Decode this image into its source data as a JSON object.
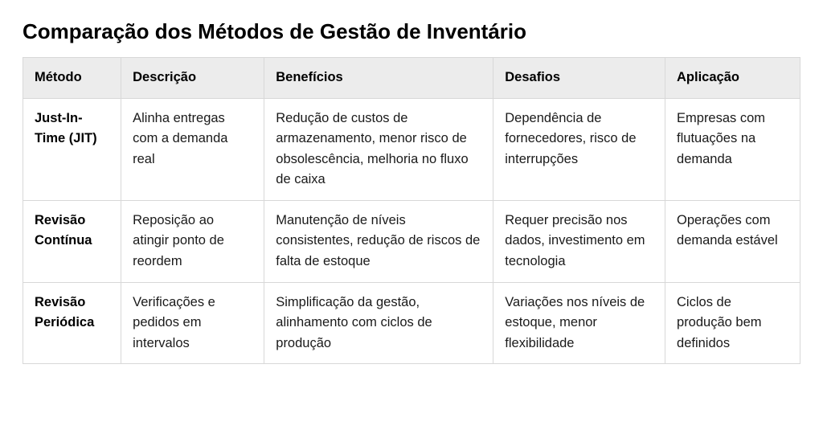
{
  "title": "Comparação dos Métodos de Gestão de Inventário",
  "table": {
    "columns": [
      "Método",
      "Descrição",
      "Benefícios",
      "Desafios",
      "Aplicação"
    ],
    "column_widths_pct": [
      12.0,
      17.5,
      28.0,
      21.0,
      16.5
    ],
    "header_bg": "#ececec",
    "border_color": "#d8d8d8",
    "cell_bg": "#ffffff",
    "text_color": "#1a1a1a",
    "header_text_color": "#000000",
    "title_fontsize": 26,
    "cell_fontsize": 16.5,
    "rows": [
      {
        "method": "Just-In-Time (JIT)",
        "description": "Alinha entregas com a demanda real",
        "benefits": "Redução de custos de armazenamento, menor risco de obsolescência, melhoria no fluxo de caixa",
        "challenges": "Dependência de fornecedores, risco de interrupções",
        "application": "Empresas com flutuações na demanda"
      },
      {
        "method": "Revisão Contínua",
        "description": "Reposição ao atingir ponto de reordem",
        "benefits": "Manutenção de níveis consistentes, redução de riscos de falta de estoque",
        "challenges": "Requer precisão nos dados, investimento em tecnologia",
        "application": "Operações com demanda estável"
      },
      {
        "method": "Revisão Periódica",
        "description": "Verificações e pedidos em intervalos",
        "benefits": "Simplificação da gestão, alinhamento com ciclos de produção",
        "challenges": "Variações nos níveis de estoque, menor flexibilidade",
        "application": "Ciclos de produção bem definidos"
      }
    ]
  }
}
